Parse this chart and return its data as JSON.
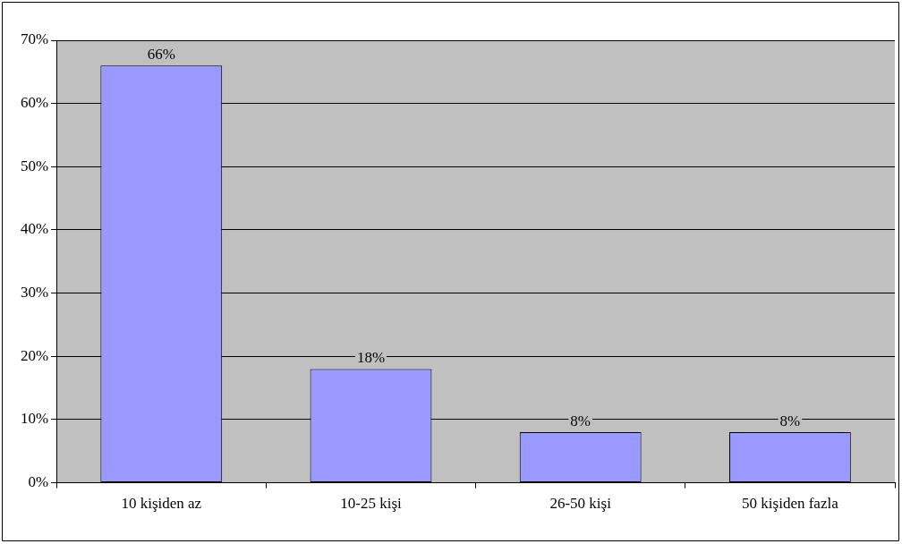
{
  "chart_data": {
    "type": "bar",
    "categories": [
      "10 kişiden az",
      "10-25 kişi",
      "26-50 kişi",
      "50 kişiden fazla"
    ],
    "values": [
      66,
      18,
      8,
      8
    ],
    "value_labels": [
      "66%",
      "18%",
      "8%",
      "8%"
    ],
    "color": "#9999ff",
    "ylim": [
      0,
      70
    ],
    "yticks": [
      {
        "value": 0,
        "label": "0%"
      },
      {
        "value": 10,
        "label": "10%"
      },
      {
        "value": 20,
        "label": "20%"
      },
      {
        "value": 30,
        "label": "30%"
      },
      {
        "value": 40,
        "label": "40%"
      },
      {
        "value": 50,
        "label": "50%"
      },
      {
        "value": 60,
        "label": "60%"
      },
      {
        "value": 70,
        "label": "70%"
      }
    ],
    "grid": "y",
    "legend": false
  }
}
